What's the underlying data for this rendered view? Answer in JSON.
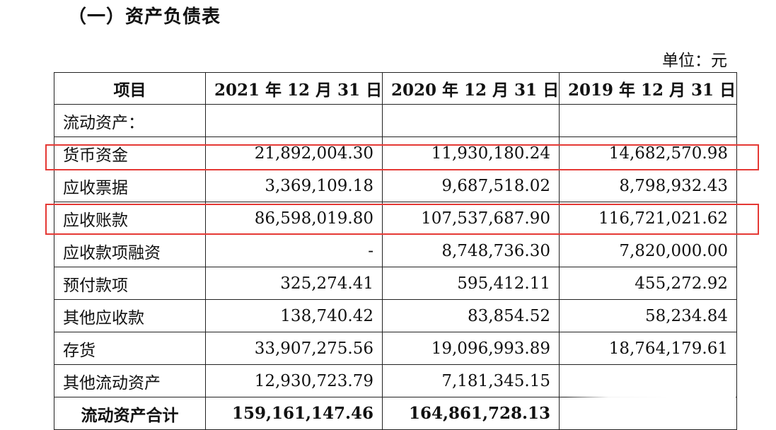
{
  "section_title": "（一）资产负债表",
  "unit_label": "单位：元",
  "table": {
    "headers": [
      "项目",
      "2021 年 12 月 31 日",
      "2020 年 12 月 31 日",
      "2019 年 12 月 31 日"
    ],
    "rows": [
      {
        "item": "流动资产：",
        "values": [
          "",
          "",
          ""
        ]
      },
      {
        "item": "货币资金",
        "values": [
          "21,892,004.30",
          "11,930,180.24",
          "14,682,570.98"
        ],
        "highlighted": true
      },
      {
        "item": "应收票据",
        "values": [
          "3,369,109.18",
          "9,687,518.02",
          "8,798,932.43"
        ]
      },
      {
        "item": "应收账款",
        "values": [
          "86,598,019.80",
          "107,537,687.90",
          "116,721,021.62"
        ],
        "highlighted": true
      },
      {
        "item": "应收款项融资",
        "values": [
          "-",
          "8,748,736.30",
          "7,820,000.00"
        ]
      },
      {
        "item": "预付款项",
        "values": [
          "325,274.41",
          "595,412.11",
          "455,272.92"
        ]
      },
      {
        "item": "其他应收款",
        "values": [
          "138,740.42",
          "83,854.52",
          "58,234.84"
        ]
      },
      {
        "item": "存货",
        "values": [
          "33,907,275.56",
          "19,096,993.89",
          "18,764,179.61"
        ]
      },
      {
        "item": "其他流动资产",
        "values": [
          "12,930,723.79",
          "7,181,345.15",
          ""
        ]
      },
      {
        "item": "流动资产合计",
        "values": [
          "159,161,147.46",
          "164,861,728.13",
          ""
        ],
        "total": true
      }
    ]
  },
  "colors": {
    "highlight_border": "#e53935",
    "table_border": "#222222",
    "text": "#111111"
  }
}
